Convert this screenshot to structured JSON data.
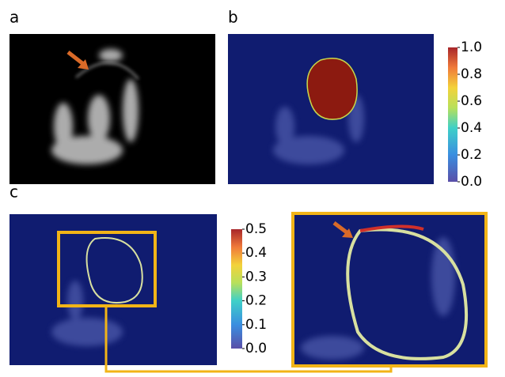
{
  "panels": {
    "a": "a",
    "b": "b",
    "c": "c"
  },
  "colorbars": [
    {
      "lim": [
        0,
        1
      ],
      "ticks": [
        {
          "value": 0,
          "label": "0.0"
        },
        {
          "value": 0.2,
          "label": "0.2"
        },
        {
          "value": 0.4,
          "label": "0.4"
        },
        {
          "value": 0.6,
          "label": "0.6"
        },
        {
          "value": 0.8,
          "label": "0.8"
        },
        {
          "value": 1,
          "label": "1.0"
        }
      ]
    },
    {
      "lim": [
        0,
        0.5
      ],
      "ticks": [
        {
          "value": 0,
          "label": "0.0"
        },
        {
          "value": 0.1,
          "label": "0.1"
        },
        {
          "value": 0.2,
          "label": "0.2"
        },
        {
          "value": 0.3,
          "label": "0.3"
        },
        {
          "value": 0.4,
          "label": "0.4"
        },
        {
          "value": 0.5,
          "label": "0.5"
        }
      ]
    }
  ]
}
